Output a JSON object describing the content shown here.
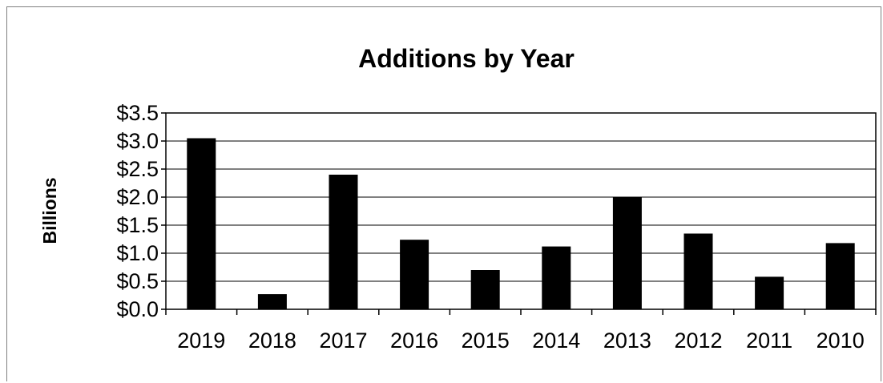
{
  "chart_data": {
    "type": "bar",
    "title": "Additions by Year",
    "xlabel": "",
    "ylabel": "Billions",
    "categories": [
      "2019",
      "2018",
      "2017",
      "2016",
      "2015",
      "2014",
      "2013",
      "2012",
      "2011",
      "2010"
    ],
    "values": [
      3.05,
      0.27,
      2.4,
      1.24,
      0.7,
      1.12,
      2.0,
      1.35,
      0.58,
      1.18
    ],
    "ylim": [
      0,
      3.5
    ],
    "yticks": [
      "$0.0",
      "$0.5",
      "$1.0",
      "$1.5",
      "$2.0",
      "$2.5",
      "$3.0",
      "$3.5"
    ],
    "grid": true,
    "legend": "none",
    "colors": {
      "bar": "#000000",
      "grid": "#000000",
      "axis": "#000000"
    }
  }
}
